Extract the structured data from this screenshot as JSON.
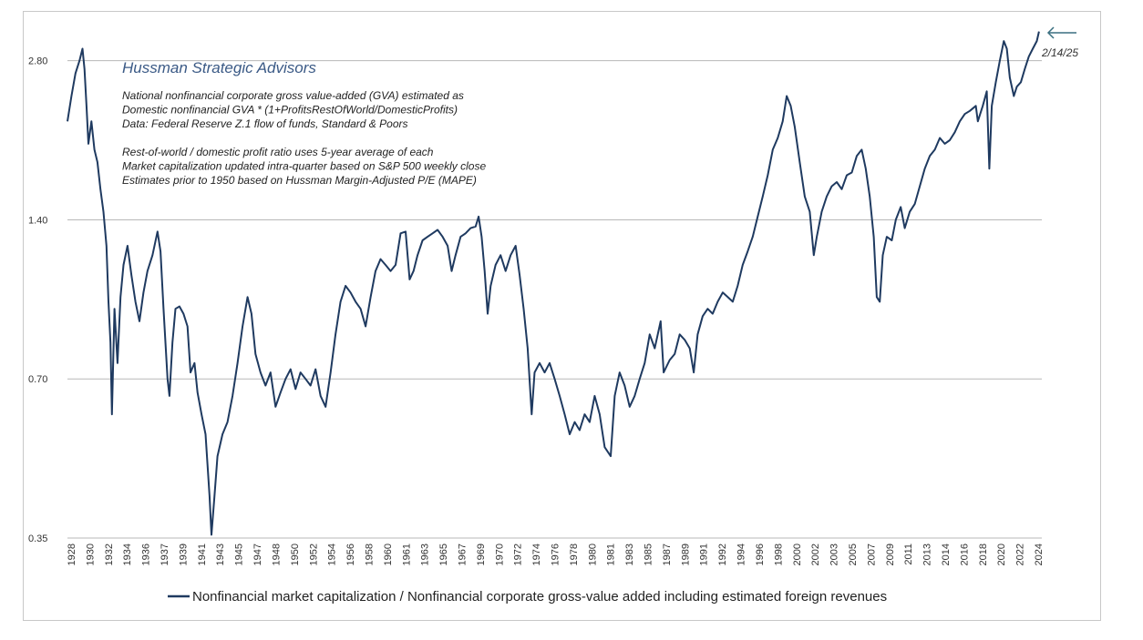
{
  "chart_data": {
    "type": "line",
    "y_scale": "log",
    "ylim": [
      0.35,
      3.2
    ],
    "y_ticks": [
      "0.35",
      "0.70",
      "1.40",
      "2.80"
    ],
    "grid": "horizontal",
    "x_tick_labels": [
      "1928",
      "1930",
      "1932",
      "1934",
      "1936",
      "1937",
      "1939",
      "1941",
      "1943",
      "1945",
      "1947",
      "1948",
      "1950",
      "1952",
      "1954",
      "1956",
      "1958",
      "1960",
      "1961",
      "1963",
      "1965",
      "1967",
      "1969",
      "1970",
      "1972",
      "1974",
      "1976",
      "1978",
      "1980",
      "1981",
      "1983",
      "1985",
      "1987",
      "1989",
      "1991",
      "1992",
      "1994",
      "1996",
      "1998",
      "2000",
      "2002",
      "2003",
      "2005",
      "2007",
      "2009",
      "2011",
      "2013",
      "2014",
      "2016",
      "2018",
      "2020",
      "2022",
      "2024"
    ],
    "xlim": [
      1928,
      2025.4
    ],
    "brand": "Hussman Strategic Advisors",
    "notes": [
      "National nonfinancial corporate gross value-added (GVA) estimated as",
      "Domestic nonfinancial GVA * (1+ProfitsRestOfWorld/DomesticProfits)",
      "Data: Federal Reserve Z.1 flow of funds, Standard & Poors",
      "",
      "Rest-of-world / domestic profit ratio uses 5-year average of each",
      "Market capitalization updated intra-quarter based on S&P 500 weekly close",
      "Estimates prior to 1950 based on Hussman Margin-Adjusted P/E (MAPE)"
    ],
    "latest_date_label": "2/14/25",
    "series": [
      {
        "name": "Nonfinancial market capitalization / Nonfinancial corporate gross-value added including estimated foreign revenues",
        "color": "#1f3a60",
        "points": [
          [
            1928.0,
            2.15
          ],
          [
            1928.4,
            2.4
          ],
          [
            1928.8,
            2.65
          ],
          [
            1929.2,
            2.8
          ],
          [
            1929.5,
            2.95
          ],
          [
            1929.7,
            2.7
          ],
          [
            1929.9,
            2.3
          ],
          [
            1930.1,
            1.95
          ],
          [
            1930.4,
            2.15
          ],
          [
            1930.7,
            1.9
          ],
          [
            1931.0,
            1.8
          ],
          [
            1931.3,
            1.6
          ],
          [
            1931.6,
            1.45
          ],
          [
            1931.9,
            1.25
          ],
          [
            1932.1,
            0.98
          ],
          [
            1932.3,
            0.82
          ],
          [
            1932.45,
            0.6
          ],
          [
            1932.7,
            0.95
          ],
          [
            1933.0,
            0.75
          ],
          [
            1933.3,
            1.0
          ],
          [
            1933.6,
            1.15
          ],
          [
            1934.0,
            1.25
          ],
          [
            1934.4,
            1.1
          ],
          [
            1934.8,
            0.98
          ],
          [
            1935.2,
            0.9
          ],
          [
            1935.6,
            1.02
          ],
          [
            1936.0,
            1.12
          ],
          [
            1936.5,
            1.2
          ],
          [
            1937.0,
            1.33
          ],
          [
            1937.3,
            1.22
          ],
          [
            1937.6,
            0.95
          ],
          [
            1938.0,
            0.7
          ],
          [
            1938.2,
            0.65
          ],
          [
            1938.5,
            0.82
          ],
          [
            1938.8,
            0.95
          ],
          [
            1939.2,
            0.96
          ],
          [
            1939.6,
            0.93
          ],
          [
            1940.0,
            0.88
          ],
          [
            1940.3,
            0.72
          ],
          [
            1940.7,
            0.75
          ],
          [
            1941.0,
            0.66
          ],
          [
            1941.4,
            0.6
          ],
          [
            1941.8,
            0.55
          ],
          [
            1942.2,
            0.42
          ],
          [
            1942.4,
            0.355
          ],
          [
            1942.7,
            0.42
          ],
          [
            1943.0,
            0.5
          ],
          [
            1943.5,
            0.55
          ],
          [
            1944.0,
            0.58
          ],
          [
            1944.5,
            0.65
          ],
          [
            1945.0,
            0.75
          ],
          [
            1945.5,
            0.88
          ],
          [
            1946.0,
            1.0
          ],
          [
            1946.4,
            0.93
          ],
          [
            1946.8,
            0.78
          ],
          [
            1947.3,
            0.72
          ],
          [
            1947.8,
            0.68
          ],
          [
            1948.3,
            0.72
          ],
          [
            1948.8,
            0.62
          ],
          [
            1949.3,
            0.66
          ],
          [
            1949.8,
            0.7
          ],
          [
            1950.3,
            0.73
          ],
          [
            1950.8,
            0.67
          ],
          [
            1951.3,
            0.72
          ],
          [
            1951.8,
            0.7
          ],
          [
            1952.3,
            0.68
          ],
          [
            1952.8,
            0.73
          ],
          [
            1953.3,
            0.65
          ],
          [
            1953.8,
            0.62
          ],
          [
            1954.3,
            0.72
          ],
          [
            1954.8,
            0.85
          ],
          [
            1955.3,
            0.98
          ],
          [
            1955.8,
            1.05
          ],
          [
            1956.3,
            1.02
          ],
          [
            1956.8,
            0.98
          ],
          [
            1957.3,
            0.95
          ],
          [
            1957.8,
            0.88
          ],
          [
            1958.3,
            1.0
          ],
          [
            1958.8,
            1.12
          ],
          [
            1959.3,
            1.18
          ],
          [
            1959.8,
            1.15
          ],
          [
            1960.3,
            1.12
          ],
          [
            1960.8,
            1.15
          ],
          [
            1961.3,
            1.32
          ],
          [
            1961.8,
            1.33
          ],
          [
            1962.2,
            1.08
          ],
          [
            1962.6,
            1.12
          ],
          [
            1963.0,
            1.2
          ],
          [
            1963.5,
            1.28
          ],
          [
            1964.0,
            1.3
          ],
          [
            1964.5,
            1.32
          ],
          [
            1965.0,
            1.34
          ],
          [
            1965.5,
            1.3
          ],
          [
            1966.0,
            1.25
          ],
          [
            1966.4,
            1.12
          ],
          [
            1966.8,
            1.2
          ],
          [
            1967.3,
            1.3
          ],
          [
            1967.8,
            1.32
          ],
          [
            1968.3,
            1.35
          ],
          [
            1968.8,
            1.36
          ],
          [
            1969.1,
            1.42
          ],
          [
            1969.4,
            1.3
          ],
          [
            1969.7,
            1.12
          ],
          [
            1970.0,
            0.93
          ],
          [
            1970.3,
            1.05
          ],
          [
            1970.8,
            1.15
          ],
          [
            1971.3,
            1.2
          ],
          [
            1971.8,
            1.12
          ],
          [
            1972.3,
            1.2
          ],
          [
            1972.8,
            1.25
          ],
          [
            1973.2,
            1.1
          ],
          [
            1973.6,
            0.95
          ],
          [
            1974.0,
            0.8
          ],
          [
            1974.4,
            0.6
          ],
          [
            1974.7,
            0.72
          ],
          [
            1975.2,
            0.75
          ],
          [
            1975.7,
            0.72
          ],
          [
            1976.2,
            0.75
          ],
          [
            1976.7,
            0.7
          ],
          [
            1977.2,
            0.65
          ],
          [
            1977.7,
            0.6
          ],
          [
            1978.2,
            0.55
          ],
          [
            1978.7,
            0.58
          ],
          [
            1979.2,
            0.56
          ],
          [
            1979.7,
            0.6
          ],
          [
            1980.2,
            0.58
          ],
          [
            1980.7,
            0.65
          ],
          [
            1981.2,
            0.6
          ],
          [
            1981.7,
            0.52
          ],
          [
            1982.3,
            0.5
          ],
          [
            1982.7,
            0.65
          ],
          [
            1983.2,
            0.72
          ],
          [
            1983.7,
            0.68
          ],
          [
            1984.2,
            0.62
          ],
          [
            1984.7,
            0.65
          ],
          [
            1985.2,
            0.7
          ],
          [
            1985.7,
            0.75
          ],
          [
            1986.2,
            0.85
          ],
          [
            1986.7,
            0.8
          ],
          [
            1987.3,
            0.9
          ],
          [
            1987.6,
            0.72
          ],
          [
            1988.2,
            0.76
          ],
          [
            1988.7,
            0.78
          ],
          [
            1989.2,
            0.85
          ],
          [
            1989.7,
            0.83
          ],
          [
            1990.2,
            0.8
          ],
          [
            1990.6,
            0.72
          ],
          [
            1991.0,
            0.85
          ],
          [
            1991.5,
            0.92
          ],
          [
            1992.0,
            0.95
          ],
          [
            1992.5,
            0.93
          ],
          [
            1993.0,
            0.98
          ],
          [
            1993.5,
            1.02
          ],
          [
            1994.0,
            1.0
          ],
          [
            1994.5,
            0.98
          ],
          [
            1995.0,
            1.05
          ],
          [
            1995.5,
            1.15
          ],
          [
            1996.0,
            1.22
          ],
          [
            1996.5,
            1.3
          ],
          [
            1997.0,
            1.42
          ],
          [
            1997.5,
            1.55
          ],
          [
            1998.0,
            1.7
          ],
          [
            1998.5,
            1.9
          ],
          [
            1999.0,
            2.0
          ],
          [
            1999.5,
            2.15
          ],
          [
            1999.9,
            2.4
          ],
          [
            2000.3,
            2.3
          ],
          [
            2000.7,
            2.1
          ],
          [
            2001.2,
            1.8
          ],
          [
            2001.7,
            1.55
          ],
          [
            2002.2,
            1.45
          ],
          [
            2002.6,
            1.2
          ],
          [
            2002.9,
            1.3
          ],
          [
            2003.4,
            1.45
          ],
          [
            2003.9,
            1.55
          ],
          [
            2004.4,
            1.62
          ],
          [
            2004.9,
            1.65
          ],
          [
            2005.4,
            1.6
          ],
          [
            2005.9,
            1.7
          ],
          [
            2006.4,
            1.72
          ],
          [
            2006.9,
            1.85
          ],
          [
            2007.4,
            1.9
          ],
          [
            2007.8,
            1.75
          ],
          [
            2008.2,
            1.55
          ],
          [
            2008.6,
            1.3
          ],
          [
            2008.9,
            1.0
          ],
          [
            2009.2,
            0.98
          ],
          [
            2009.5,
            1.2
          ],
          [
            2009.9,
            1.3
          ],
          [
            2010.4,
            1.28
          ],
          [
            2010.8,
            1.4
          ],
          [
            2011.3,
            1.48
          ],
          [
            2011.7,
            1.35
          ],
          [
            2012.2,
            1.45
          ],
          [
            2012.7,
            1.5
          ],
          [
            2013.2,
            1.62
          ],
          [
            2013.7,
            1.75
          ],
          [
            2014.2,
            1.85
          ],
          [
            2014.7,
            1.9
          ],
          [
            2015.2,
            2.0
          ],
          [
            2015.7,
            1.95
          ],
          [
            2016.2,
            1.98
          ],
          [
            2016.7,
            2.05
          ],
          [
            2017.2,
            2.15
          ],
          [
            2017.7,
            2.22
          ],
          [
            2018.2,
            2.25
          ],
          [
            2018.8,
            2.3
          ],
          [
            2019.0,
            2.15
          ],
          [
            2019.5,
            2.3
          ],
          [
            2019.9,
            2.45
          ],
          [
            2020.15,
            1.75
          ],
          [
            2020.4,
            2.3
          ],
          [
            2020.8,
            2.55
          ],
          [
            2021.2,
            2.8
          ],
          [
            2021.6,
            3.05
          ],
          [
            2021.9,
            2.95
          ],
          [
            2022.2,
            2.6
          ],
          [
            2022.6,
            2.4
          ],
          [
            2022.9,
            2.5
          ],
          [
            2023.3,
            2.55
          ],
          [
            2023.7,
            2.7
          ],
          [
            2024.1,
            2.85
          ],
          [
            2024.5,
            2.95
          ],
          [
            2024.9,
            3.05
          ],
          [
            2025.12,
            3.18
          ]
        ]
      }
    ]
  }
}
